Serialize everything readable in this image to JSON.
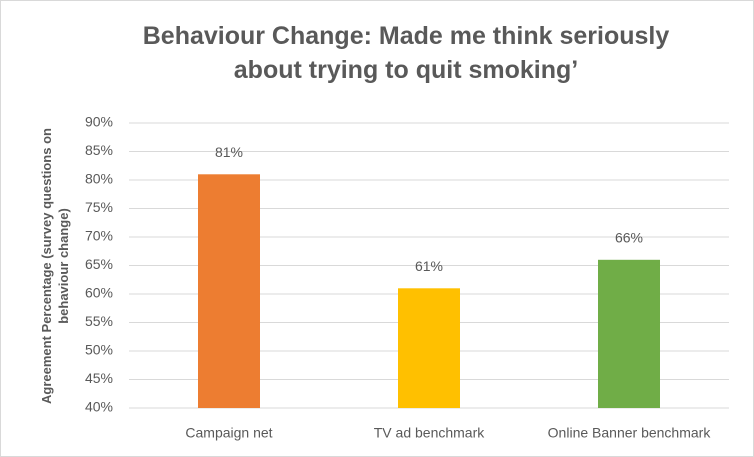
{
  "chart_data": {
    "type": "bar",
    "title": "Behaviour Change: Made me think seriously about trying to quit smoking’",
    "y_label": "Agreement Percentage (survey questions on behaviour change)",
    "categories": [
      "Campaign net",
      "TV ad benchmark",
      "Online Banner benchmark"
    ],
    "values": [
      81,
      61,
      66
    ],
    "value_labels": [
      "81%",
      "61%",
      "66%"
    ],
    "colors": [
      "#ed7d31",
      "#ffc000",
      "#70ad47"
    ],
    "ylim": [
      40,
      90
    ],
    "yticks": [
      {
        "value": 40,
        "label": "40%"
      },
      {
        "value": 45,
        "label": "45%"
      },
      {
        "value": 50,
        "label": "50%"
      },
      {
        "value": 55,
        "label": "55%"
      },
      {
        "value": 60,
        "label": "60%"
      },
      {
        "value": 65,
        "label": "65%"
      },
      {
        "value": 70,
        "label": "70%"
      },
      {
        "value": 75,
        "label": "75%"
      },
      {
        "value": 80,
        "label": "80%"
      },
      {
        "value": 85,
        "label": "85%"
      },
      {
        "value": 90,
        "label": "90%"
      }
    ],
    "grid": true
  }
}
